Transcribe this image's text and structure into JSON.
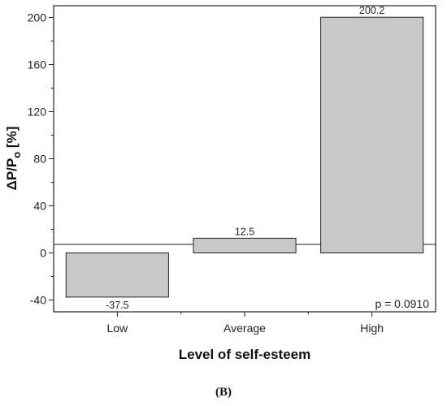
{
  "chart_data": {
    "type": "bar",
    "categories": [
      "Low",
      "Average",
      "High"
    ],
    "values": [
      -37.5,
      12.5,
      200.2
    ],
    "data_labels": [
      "-37.5",
      "12.5",
      "200.2"
    ],
    "title": "",
    "xlabel": "Level of self-esteem",
    "ylabel": "ΔP/P",
    "ylabel_subscript": "o",
    "ylabel_suffix": " [%]",
    "ylim": [
      -50,
      210
    ],
    "yticks": [
      -40,
      0,
      40,
      80,
      120,
      160,
      200
    ],
    "ytick_labels": [
      "-40",
      "0",
      "40",
      "80",
      "120",
      "160",
      "200"
    ],
    "grid": false,
    "legend": "none",
    "bar_color": "#c8c8c8",
    "bar_edge_color": "#222222",
    "annotation": "p = 0.0910"
  },
  "figure": {
    "panel_label": "(B)"
  }
}
